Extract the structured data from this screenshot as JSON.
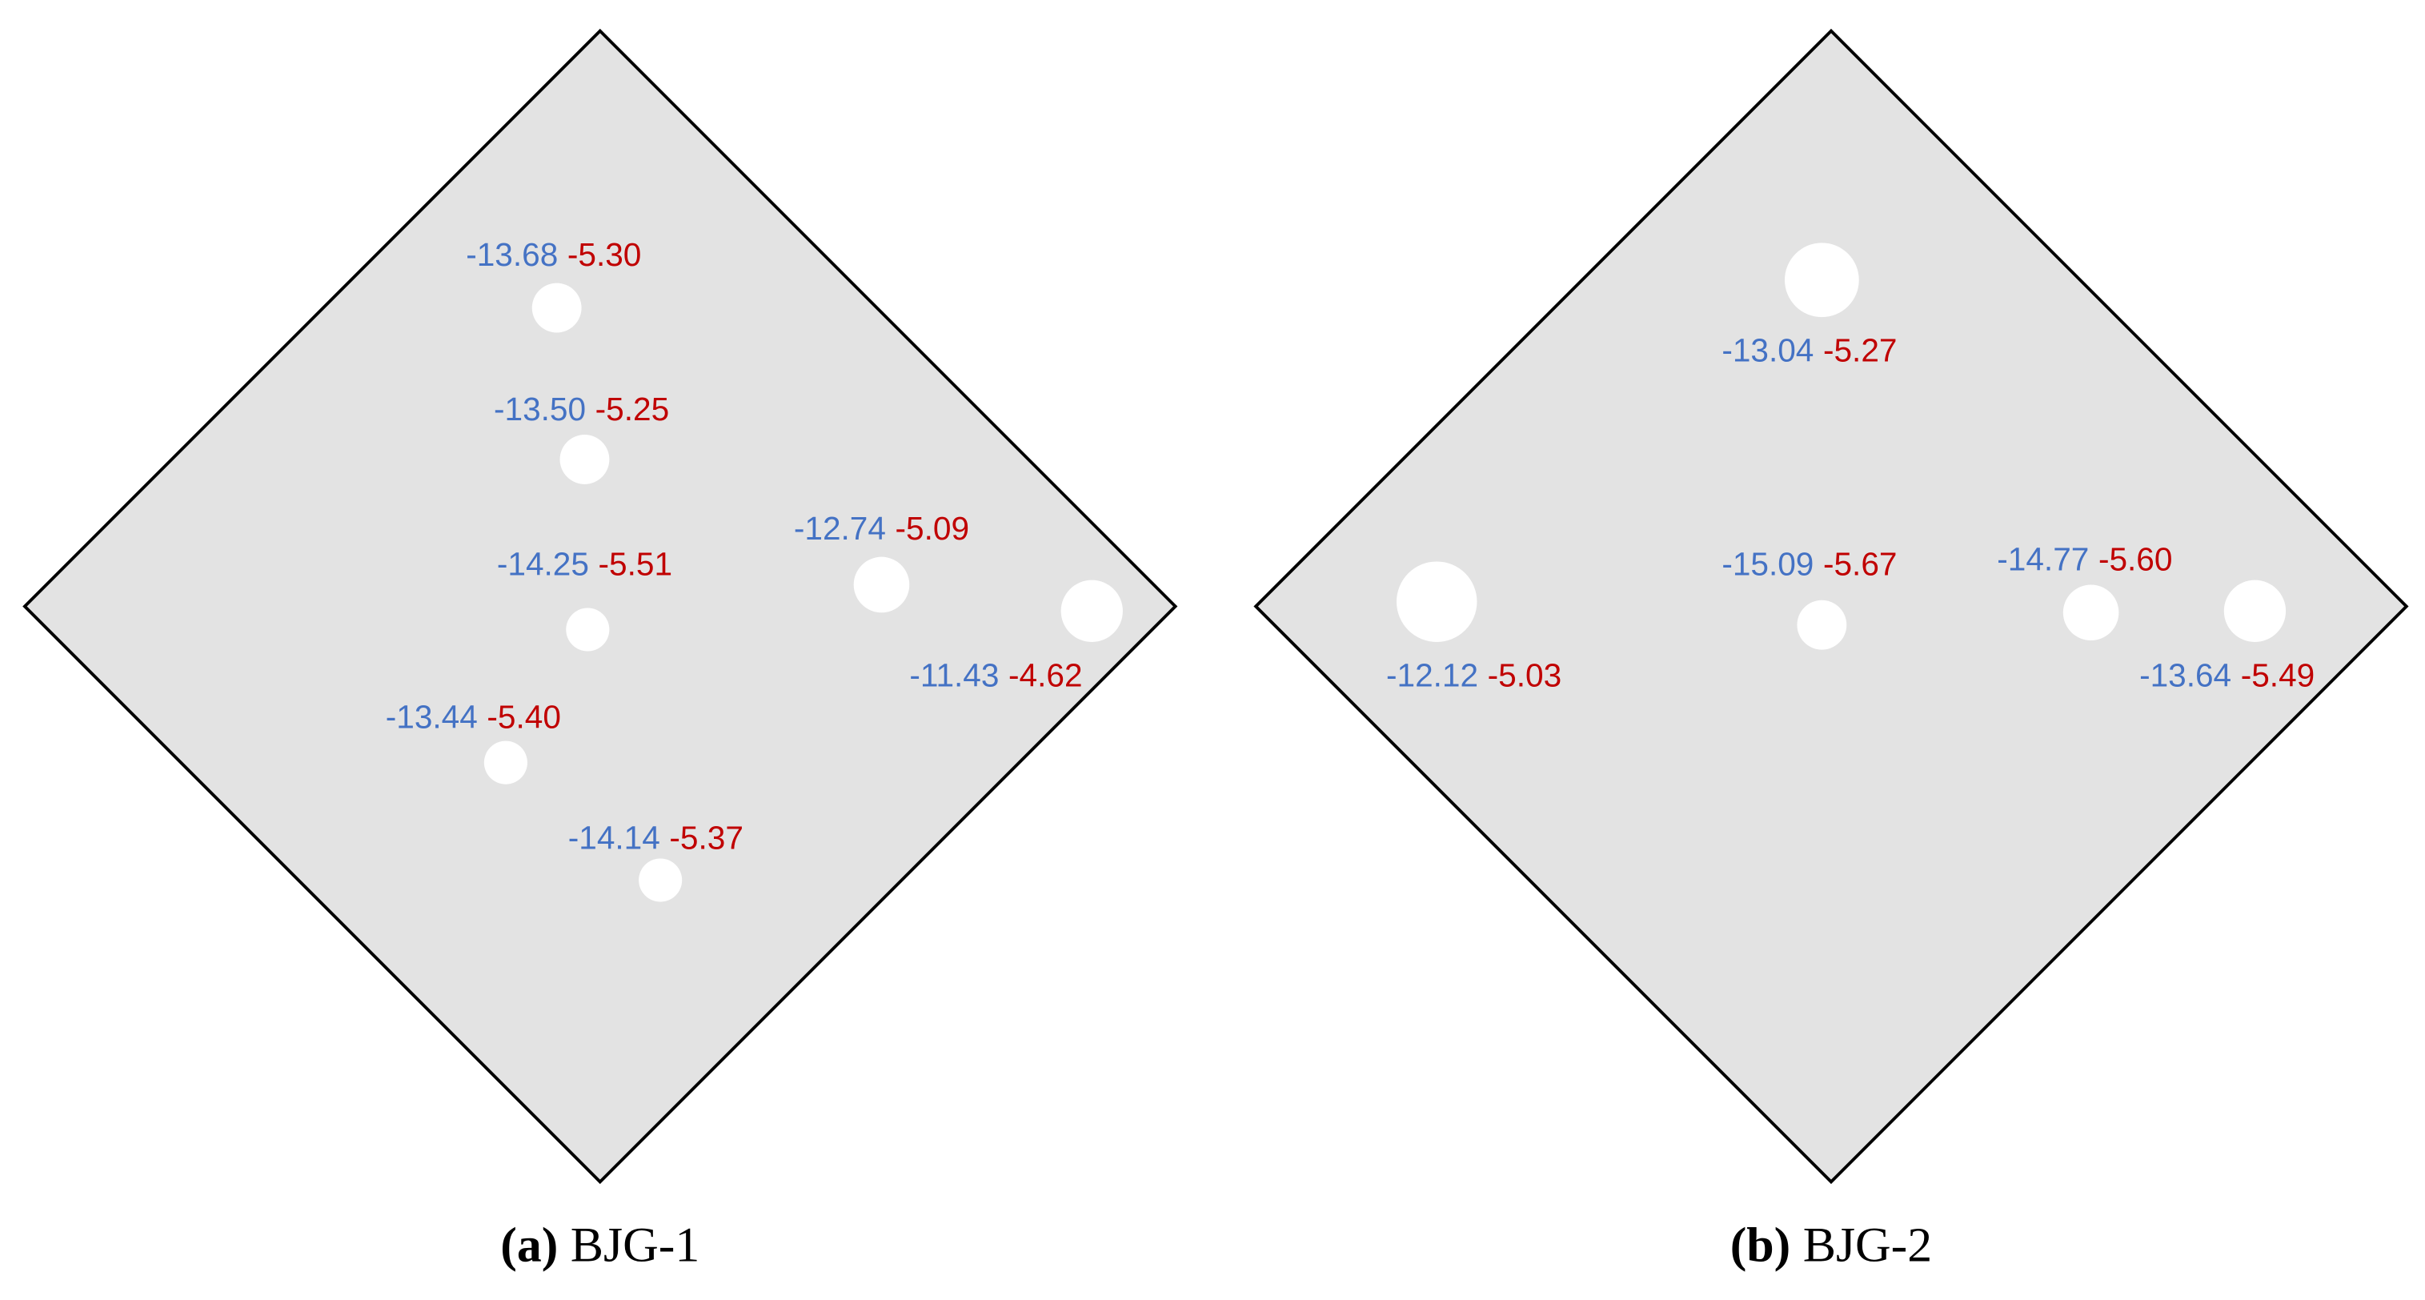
{
  "panels": [
    {
      "caption_letter": "(a)",
      "caption_text": "BJG-1",
      "holes": [
        {
          "blue": "-13.68",
          "red": "-5.30"
        },
        {
          "blue": "-13.50",
          "red": "-5.25"
        },
        {
          "blue": "-14.25",
          "red": "-5.51"
        },
        {
          "blue": "-13.44",
          "red": "-5.40"
        },
        {
          "blue": "-14.14",
          "red": "-5.37"
        },
        {
          "blue": "-12.74",
          "red": "-5.09"
        },
        {
          "blue": "-11.43",
          "red": "-4.62"
        }
      ]
    },
    {
      "caption_letter": "(b)",
      "caption_text": "BJG-2",
      "holes": [
        {
          "blue": "-13.04",
          "red": "-5.27"
        },
        {
          "blue": "-12.12",
          "red": "-5.03"
        },
        {
          "blue": "-15.09",
          "red": "-5.67"
        },
        {
          "blue": "-14.77",
          "red": "-5.60"
        },
        {
          "blue": "-13.64",
          "red": "-5.49"
        }
      ]
    }
  ]
}
